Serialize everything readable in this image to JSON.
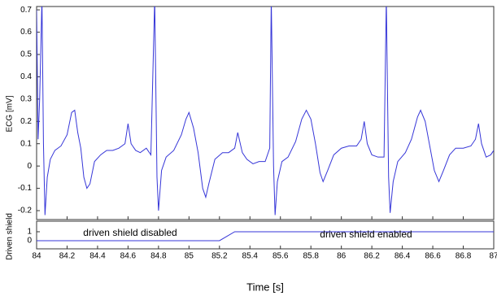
{
  "chart_data": [
    {
      "type": "line",
      "y_label": "ECG [mV]",
      "color": "#3636d8",
      "xlim": [
        84,
        87
      ],
      "ylim": [
        -0.24,
        0.715
      ],
      "yticks": [
        -0.2,
        -0.1,
        0,
        0.1,
        0.2,
        0.3,
        0.4,
        0.5,
        0.6,
        0.7
      ],
      "x": [
        84.0,
        84.01,
        84.02,
        84.035,
        84.045,
        84.055,
        84.07,
        84.09,
        84.12,
        84.16,
        84.2,
        84.23,
        84.25,
        84.27,
        84.29,
        84.31,
        84.33,
        84.35,
        84.38,
        84.42,
        84.46,
        84.5,
        84.54,
        84.58,
        84.6,
        84.62,
        84.65,
        84.68,
        84.72,
        84.75,
        84.775,
        84.79,
        84.8,
        84.82,
        84.85,
        84.9,
        84.95,
        84.98,
        85.0,
        85.03,
        85.06,
        85.09,
        85.11,
        85.13,
        85.17,
        85.22,
        85.26,
        85.3,
        85.32,
        85.35,
        85.38,
        85.42,
        85.46,
        85.5,
        85.53,
        85.54,
        85.555,
        85.565,
        85.58,
        85.61,
        85.65,
        85.7,
        85.74,
        85.77,
        85.8,
        85.83,
        85.86,
        85.88,
        85.91,
        85.95,
        86.0,
        86.05,
        86.1,
        86.13,
        86.15,
        86.17,
        86.2,
        86.24,
        86.28,
        86.295,
        86.31,
        86.32,
        86.34,
        86.37,
        86.42,
        86.46,
        86.5,
        86.52,
        86.55,
        86.58,
        86.61,
        86.64,
        86.67,
        86.71,
        86.75,
        86.8,
        86.85,
        86.88,
        86.9,
        86.92,
        86.95,
        86.98,
        87.0
      ],
      "values": [
        0.7,
        0.12,
        0.3,
        0.75,
        0.1,
        -0.22,
        -0.05,
        0.03,
        0.07,
        0.09,
        0.14,
        0.24,
        0.25,
        0.15,
        0.08,
        -0.05,
        -0.1,
        -0.08,
        0.02,
        0.05,
        0.07,
        0.07,
        0.08,
        0.1,
        0.19,
        0.1,
        0.07,
        0.06,
        0.08,
        0.05,
        0.75,
        -0.05,
        -0.2,
        -0.02,
        0.04,
        0.07,
        0.14,
        0.21,
        0.24,
        0.17,
        0.06,
        -0.1,
        -0.14,
        -0.08,
        0.03,
        0.06,
        0.06,
        0.08,
        0.15,
        0.06,
        0.03,
        0.01,
        0.02,
        0.02,
        0.08,
        0.75,
        0.0,
        -0.22,
        -0.07,
        0.02,
        0.04,
        0.11,
        0.21,
        0.25,
        0.21,
        0.1,
        -0.03,
        -0.07,
        -0.02,
        0.05,
        0.08,
        0.09,
        0.09,
        0.12,
        0.2,
        0.1,
        0.05,
        0.04,
        0.04,
        0.75,
        -0.05,
        -0.21,
        -0.07,
        0.02,
        0.06,
        0.12,
        0.22,
        0.25,
        0.2,
        0.09,
        -0.02,
        -0.07,
        -0.02,
        0.05,
        0.08,
        0.08,
        0.09,
        0.12,
        0.19,
        0.1,
        0.04,
        0.05,
        0.07
      ]
    },
    {
      "type": "line",
      "y_label": "Driven shield",
      "x_label": "Time [s]",
      "color": "#3636d8",
      "xlim": [
        84,
        87
      ],
      "ylim": [
        -0.91,
        2.18
      ],
      "xticks": [
        84,
        84.2,
        84.4,
        84.6,
        84.8,
        85,
        85.2,
        85.4,
        85.6,
        85.8,
        86,
        86.2,
        86.4,
        86.6,
        86.8,
        87
      ],
      "yticks": [
        0,
        1
      ],
      "x": [
        84,
        85.2,
        85.3,
        87
      ],
      "values": [
        0,
        0,
        1,
        1
      ],
      "annotations": [
        "driven shield disabled",
        "driven shield enabled"
      ]
    }
  ]
}
